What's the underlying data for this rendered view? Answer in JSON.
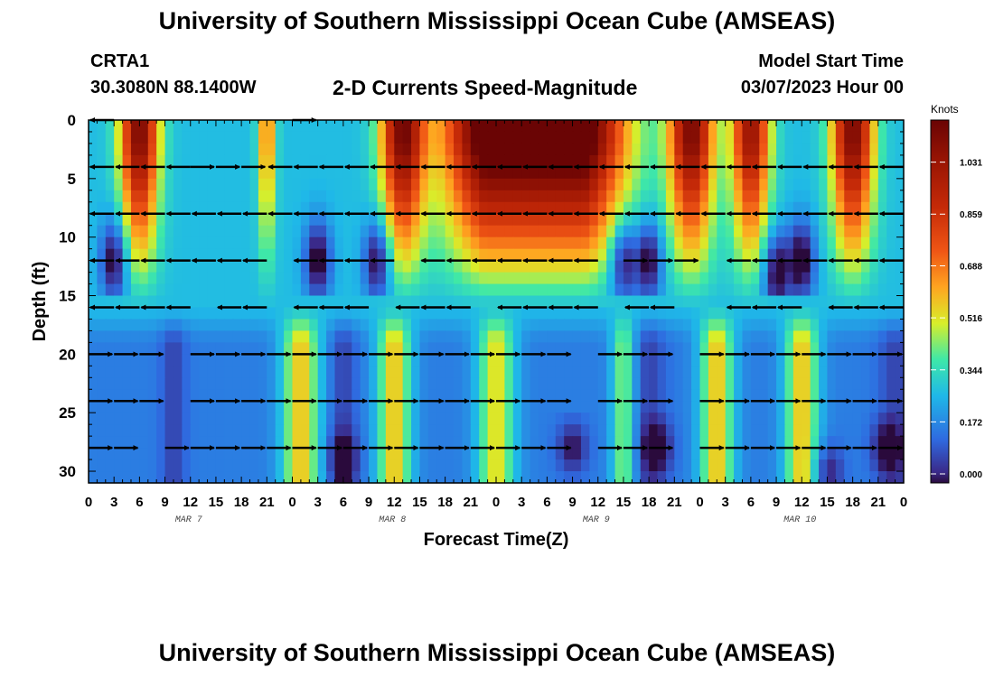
{
  "header": {
    "title": "University of Southern Mississippi Ocean Cube (AMSEAS)",
    "station": "CRTA1",
    "coords": "30.3080N  88.1400W",
    "plot_title": "2-D Currents Speed-Magnitude",
    "start_label": "Model Start Time",
    "start_value": "03/07/2023 Hour 00"
  },
  "footer": {
    "title": "University of Southern Mississippi Ocean Cube (AMSEAS)"
  },
  "chart_data": {
    "type": "heatmap",
    "title": "2-D Currents Speed-Magnitude",
    "xlabel": "Forecast Time(Z)",
    "ylabel": "Depth (ft)",
    "x_range": [
      0,
      96
    ],
    "y_range": [
      0,
      31
    ],
    "x_tick_labels": [
      "0",
      "3",
      "6",
      "9",
      "12",
      "15",
      "18",
      "21",
      "0",
      "3",
      "6",
      "9",
      "12",
      "15",
      "18",
      "21",
      "0",
      "3",
      "6",
      "9",
      "12",
      "15",
      "18",
      "21",
      "0",
      "3",
      "6",
      "9",
      "12",
      "15",
      "18",
      "21",
      "0"
    ],
    "y_ticks": [
      0,
      5,
      10,
      15,
      20,
      25,
      30
    ],
    "day_labels": [
      {
        "label": "MAR 7",
        "hour": 12
      },
      {
        "label": "MAR 8",
        "hour": 36
      },
      {
        "label": "MAR 9",
        "hour": 60
      },
      {
        "label": "MAR 10",
        "hour": 84
      }
    ],
    "colorbar": {
      "title": "Knots",
      "ticks": [
        "0.000",
        "0.172",
        "0.344",
        "0.516",
        "0.688",
        "0.859",
        "1.031"
      ],
      "range": [
        0,
        1.2
      ]
    },
    "vector_depths": [
      0,
      4,
      8,
      12,
      16,
      20,
      24,
      28
    ],
    "vectors": {
      "0": [
        [
          "a",
          0,
          3
        ],
        [
          "b",
          24,
          27
        ]
      ],
      "4": [
        [
          "a",
          0,
          12
        ],
        [
          "b",
          12,
          21
        ],
        [
          "a",
          21,
          96
        ]
      ],
      "8": [
        [
          "a",
          0,
          96
        ]
      ],
      "12": [
        [
          "a",
          0,
          21
        ],
        [
          "a",
          24,
          36
        ],
        [
          "a",
          39,
          60
        ],
        [
          "b",
          63,
          72
        ],
        [
          "c",
          75,
          84
        ],
        [
          "a",
          84,
          96
        ]
      ],
      "16": [
        [
          "a",
          0,
          12
        ],
        [
          "c",
          15,
          21
        ],
        [
          "a",
          24,
          33
        ],
        [
          "a",
          36,
          45
        ],
        [
          "a",
          48,
          60
        ],
        [
          "c",
          63,
          69
        ],
        [
          "a",
          75,
          84
        ],
        [
          "a",
          87,
          96
        ]
      ],
      "20": [
        [
          "d",
          0,
          9
        ],
        [
          "d",
          12,
          36
        ],
        [
          "d",
          36,
          48
        ],
        [
          "d",
          48,
          57
        ],
        [
          "d",
          60,
          69
        ],
        [
          "d",
          72,
          96
        ]
      ],
      "24": [
        [
          "d",
          0,
          6
        ],
        [
          "e",
          6,
          9
        ],
        [
          "d",
          12,
          57
        ],
        [
          "e",
          60,
          69
        ],
        [
          "d",
          72,
          84
        ],
        [
          "d",
          84,
          96
        ]
      ],
      "28": [
        [
          "d",
          0,
          6
        ],
        [
          "d",
          9,
          33
        ],
        [
          "e",
          33,
          48
        ],
        [
          "d",
          48,
          57
        ],
        [
          "e",
          60,
          69
        ],
        [
          "d",
          72,
          84
        ],
        [
          "f",
          84,
          96
        ]
      ]
    }
  }
}
